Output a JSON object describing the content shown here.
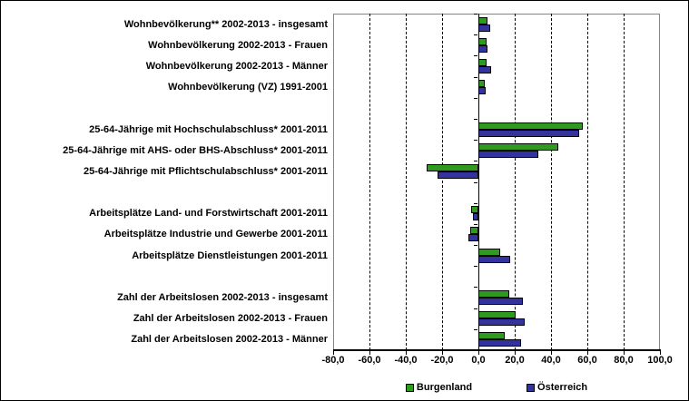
{
  "chart_data": {
    "type": "bar",
    "orientation": "horizontal",
    "title": "",
    "categories": [
      "Wohnbevölkerung** 2002-2013 - insgesamt",
      "Wohnbevölkerung 2002-2013 - Frauen",
      "Wohnbevölkerung 2002-2013 - Männer",
      "Wohnbevölkerung (VZ) 1991-2001",
      "25-64-Jährige mit Hochschulabschluss* 2001-2011",
      "25-64-Jährige mit AHS- oder BHS-Abschluss* 2001-2011",
      "25-64-Jährige mit Pflichtschulabschluss* 2001-2011",
      "Arbeitsplätze Land- und Forstwirtschaft 2001-2011",
      "Arbeitsplätze Industrie und Gewerbe 2001-2011",
      "Arbeitsplätze Dienstleistungen 2001-2011",
      "Zahl der Arbeitslosen 2002-2013 - insgesamt",
      "Zahl der Arbeitslosen 2002-2013 - Frauen",
      "Zahl der Arbeitslosen 2002-2013 - Männer"
    ],
    "series": [
      {
        "name": "Burgenland",
        "color": "#2E9B20",
        "values": [
          4.8,
          4.5,
          4.5,
          3.3,
          57.3,
          44.0,
          -28.5,
          -4.0,
          -4.5,
          12.0,
          16.9,
          20.3,
          14.4
        ]
      },
      {
        "name": "Österreich",
        "color": "#3333A0",
        "values": [
          6.5,
          5.0,
          6.8,
          4.0,
          55.4,
          32.8,
          -22.7,
          -3.0,
          -5.3,
          17.5,
          24.3,
          25.5,
          23.3
        ]
      }
    ],
    "category_slots": [
      0,
      1,
      2,
      3,
      5,
      6,
      7,
      9,
      10,
      11,
      13,
      14,
      15
    ],
    "total_slots": 16,
    "xlim": [
      -80,
      100
    ],
    "x_tick_step": 20,
    "x_tick_labels": [
      "-80,0",
      "-60,0",
      "-40,0",
      "-20,0",
      "0,0",
      "20,0",
      "40,0",
      "60,0",
      "80,0",
      "100,0"
    ],
    "grid": "vertical-dashed",
    "legend_position": "bottom",
    "axis_color": "#000000",
    "plot_border_color": "#848484",
    "background_color": "#FFFFFF"
  }
}
